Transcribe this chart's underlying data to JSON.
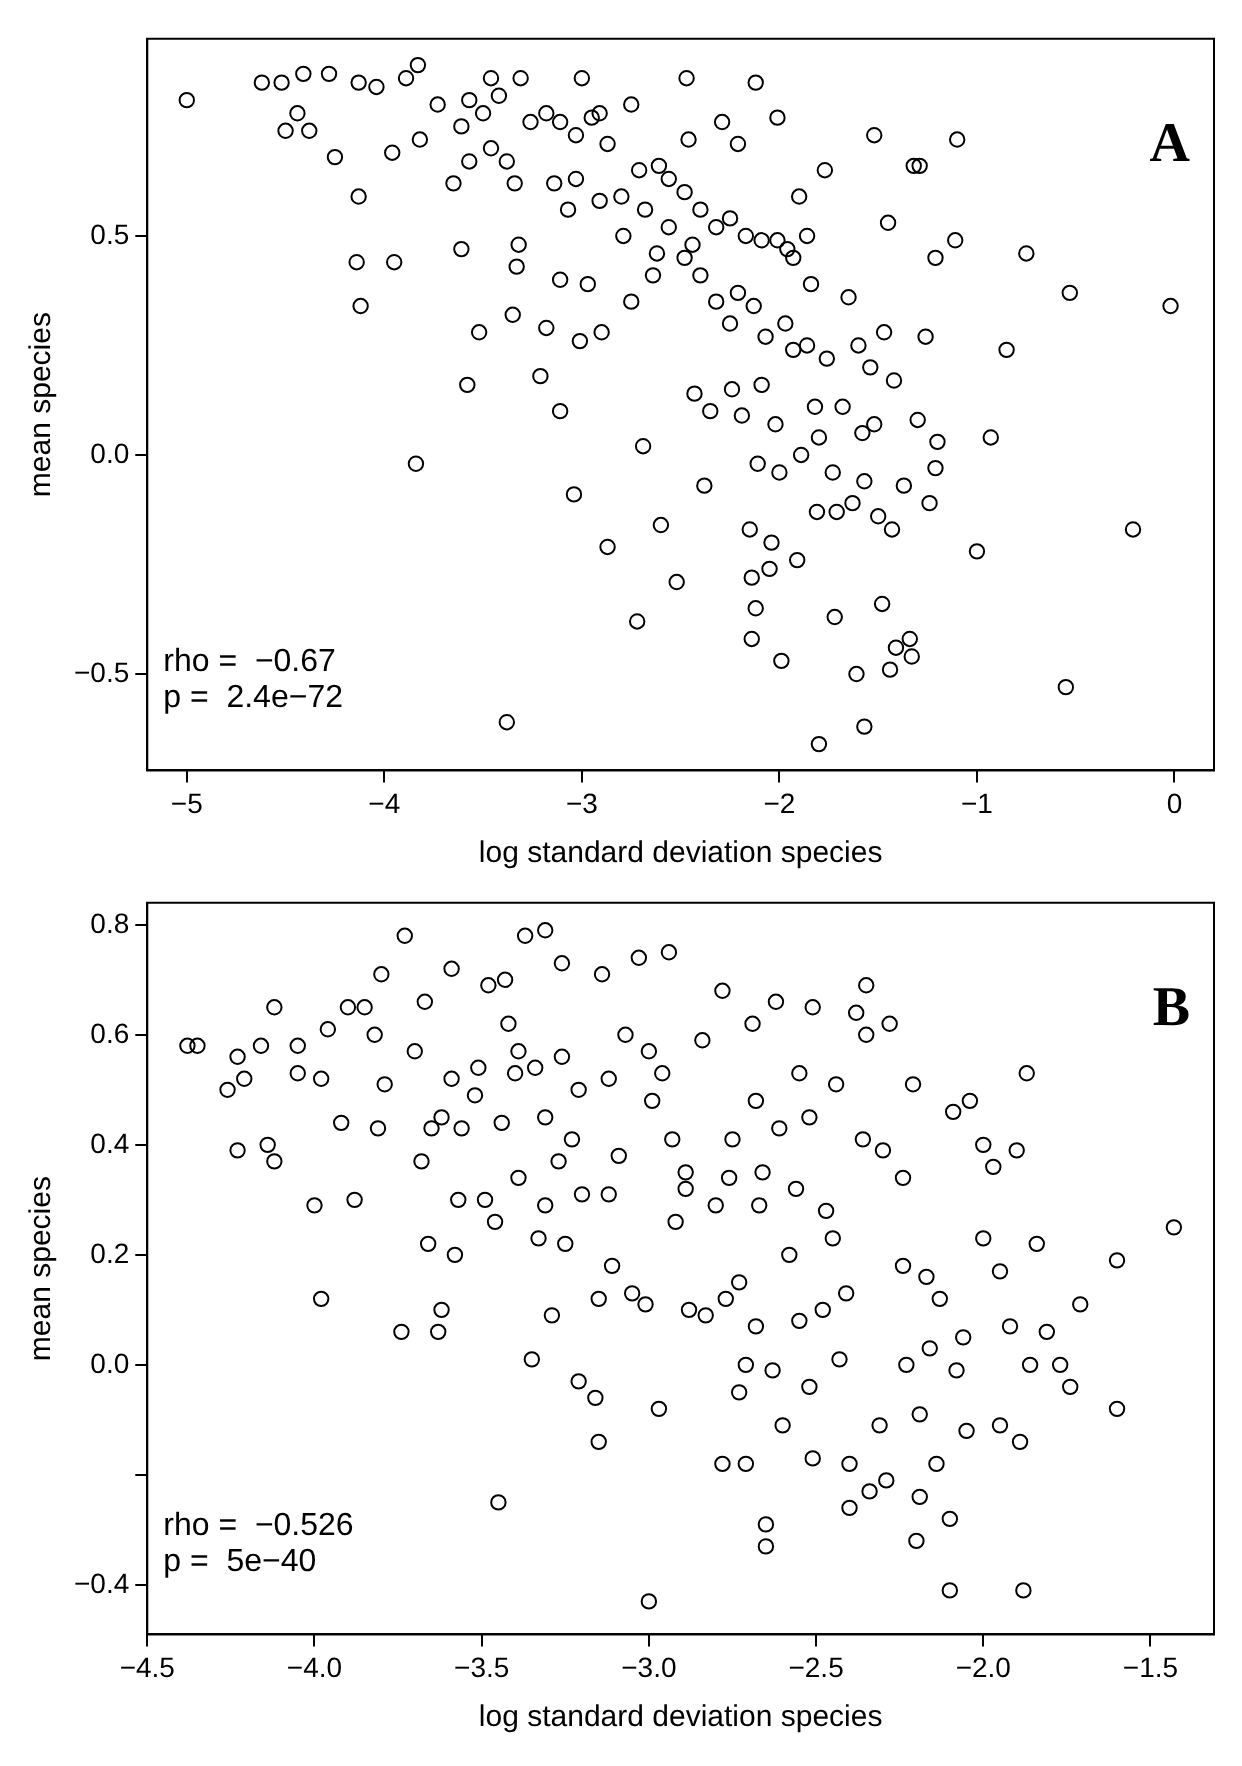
{
  "chart_data": [
    {
      "type": "scatter",
      "title": "A",
      "xlabel": "log standard deviation species",
      "ylabel": "mean species",
      "annotations": [
        "rho =  −0.67",
        "p =  2.4e−72"
      ],
      "color": "#000000",
      "marker": "circle",
      "x": [
        -5.0,
        -4.62,
        -4.52,
        -4.41,
        -4.28,
        -4.5,
        -4.38,
        -4.25,
        -4.44,
        -4.13,
        -4.14,
        -4.12,
        -3.95,
        -3.84,
        -3.83,
        -3.96,
        -4.13,
        -3.82,
        -3.65,
        -3.61,
        -3.58,
        -3.52,
        -3.46,
        -3.31,
        -3.26,
        -3.38,
        -3.32,
        -3.33,
        -3.35,
        -3.21,
        -3.11,
        -3.18,
        -3.11,
        -3.04,
        -3.01,
        -3.0,
        -2.91,
        -2.97,
        -2.9,
        -2.87,
        -2.75,
        -2.8,
        -2.75,
        -2.69,
        -2.72,
        -2.62,
        -2.61,
        -2.6,
        -2.52,
        -2.47,
        -2.46,
        -2.44,
        -2.43,
        -2.38,
        -2.35,
        -2.32,
        -2.29,
        -2.24,
        -2.21,
        -2.19,
        -2.15,
        -2.14,
        -2.14,
        -2.12,
        -2.12,
        -2.11,
        -2.09,
        -2.07,
        -2.05,
        -2.04,
        -2.02,
        -2.01,
        -2.0,
        -1.99,
        -1.96,
        -1.93,
        -1.91,
        -1.89,
        -1.9,
        -1.86,
        -1.84,
        -1.82,
        -1.81,
        -1.8,
        -1.77,
        -1.76,
        -1.73,
        -1.72,
        -1.71,
        -1.68,
        -1.65,
        -1.63,
        -1.61,
        -1.6,
        -1.58,
        -1.57,
        -1.54,
        -1.52,
        -1.52,
        -1.5,
        -1.48,
        -1.47,
        -1.45,
        -1.44,
        -1.43,
        -1.42,
        -1.41,
        -1.37,
        -1.32,
        -1.34,
        -1.33,
        -1.29,
        -1.3,
        -1.26,
        -1.24,
        -1.21,
        -1.21,
        -1.2,
        -1.11,
        -1.1,
        -1.0,
        -0.93,
        -0.85,
        -0.75,
        -0.55,
        -0.53,
        -0.21,
        -0.02,
        -4.04,
        -3.89,
        -3.73,
        -3.57,
        -3.5,
        -3.42,
        -3.18,
        -3.11,
        -3.03,
        -2.95,
        -2.87,
        -2.71,
        -2.56,
        -2.48,
        -2.4,
        -2.32,
        -2.25,
        -2.17,
        -2.09,
        -2.01,
        -1.93,
        -3.61,
        -3.46,
        -3.14,
        -3.03,
        -2.91,
        -2.68,
        -2.56,
        -2.48,
        -2.4,
        -2.21,
        -2.13,
        -1.97,
        -2.64,
        -2.25,
        -3.57,
        -3.34,
        -3.07,
        -2.79,
        -1.86,
        -3.38,
        -1.8,
        -1.57
      ],
      "values": [
        0.81,
        0.85,
        0.85,
        0.87,
        0.87,
        0.74,
        0.74,
        0.68,
        0.78,
        0.59,
        0.44,
        0.34,
        0.44,
        -0.02,
        0.89,
        0.69,
        0.85,
        0.72,
        0.62,
        0.47,
        0.16,
        0.28,
        0.86,
        0.86,
        0.76,
        0.67,
        0.48,
        0.43,
        0.32,
        0.18,
        0.1,
        0.29,
        0.4,
        -0.09,
        0.26,
        0.86,
        0.78,
        0.39,
        0.28,
        -0.21,
        0.8,
        0.59,
        0.35,
        0.02,
        -0.38,
        0.46,
        0.66,
        -0.16,
        -0.29,
        0.86,
        0.72,
        0.48,
        0.14,
        -0.07,
        0.1,
        0.35,
        0.76,
        0.15,
        0.71,
        0.09,
        -0.17,
        -0.28,
        -0.42,
        -0.35,
        0.85,
        -0.02,
        0.16,
        0.27,
        -0.26,
        -0.2,
        0.07,
        0.77,
        -0.04,
        -0.47,
        0.47,
        0.24,
        -0.24,
        0.0,
        0.59,
        0.25,
        0.39,
        0.11,
        -0.13,
        0.04,
        0.65,
        0.22,
        -0.04,
        -0.37,
        -0.13,
        0.11,
        0.36,
        -0.11,
        -0.5,
        0.25,
        0.05,
        -0.06,
        0.2,
        0.07,
        0.73,
        -0.14,
        -0.34,
        0.28,
        0.53,
        -0.49,
        -0.17,
        0.17,
        -0.44,
        -0.07,
        0.66,
        -0.42,
        -0.46,
        0.66,
        0.08,
        0.27,
        -0.11,
        0.45,
        -0.03,
        0.03,
        0.49,
        0.72,
        -0.22,
        0.04,
        0.24,
        0.46,
        -0.53,
        0.37,
        -0.17,
        0.34,
        0.84,
        0.86,
        0.8,
        0.81,
        0.78,
        0.82,
        0.78,
        0.76,
        0.73,
        0.77,
        0.71,
        0.65,
        0.63,
        0.6,
        0.56,
        0.52,
        0.54,
        0.5,
        0.49,
        0.49,
        0.45,
        0.75,
        0.7,
        0.62,
        0.63,
        0.58,
        0.56,
        0.52,
        0.45,
        0.41,
        0.37,
        0.34,
        0.3,
        0.41,
        0.3,
        0.67,
        0.62,
        0.56,
        0.5,
        0.5,
        -0.61,
        -0.66,
        -0.62
      ],
      "xlim": [
        -5.2,
        0.2
      ],
      "xticks": [
        {
          "value": -5,
          "label": "−5"
        },
        {
          "value": -4,
          "label": "−4"
        },
        {
          "value": -3,
          "label": "−3"
        },
        {
          "value": -2,
          "label": "−2"
        },
        {
          "value": -1,
          "label": "−1"
        },
        0
      ],
      "ylim": [
        -0.72,
        0.95
      ],
      "yticks": [
        {
          "value": -0.5,
          "label": "−0.5"
        },
        {
          "value": 0,
          "label": "0.0"
        },
        0.5
      ]
    },
    {
      "type": "scatter",
      "title": "B",
      "xlabel": "log standard deviation species",
      "ylabel": "mean species",
      "annotations": [
        "rho =  −0.526",
        "p =  5e−40"
      ],
      "color": "#000000",
      "marker": "circle",
      "x": [
        -4.38,
        -4.35,
        -4.26,
        -4.23,
        -4.23,
        -4.21,
        -4.16,
        -4.14,
        -4.12,
        -4.12,
        -4.05,
        -4.05,
        -4.0,
        -3.98,
        -3.98,
        -3.96,
        -3.92,
        -3.9,
        -3.88,
        -3.85,
        -3.82,
        -3.81,
        -3.8,
        -3.79,
        -3.74,
        -3.73,
        -3.7,
        -3.68,
        -3.67,
        -3.66,
        -3.65,
        -3.63,
        -3.62,
        -3.62,
        -3.59,
        -3.59,
        -3.58,
        -3.57,
        -3.56,
        -3.52,
        -3.51,
        -3.49,
        -3.48,
        -3.46,
        -3.44,
        -3.43,
        -3.42,
        -3.39,
        -3.39,
        -3.37,
        -3.35,
        -3.34,
        -3.33,
        -3.31,
        -3.31,
        -3.29,
        -3.27,
        -3.25,
        -3.26,
        -3.23,
        -3.21,
        -3.2,
        -3.16,
        -3.15,
        -3.15,
        -3.14,
        -3.12,
        -3.11,
        -3.09,
        -3.05,
        -3.03,
        -3.01,
        -2.99,
        -2.97,
        -2.94,
        -2.92,
        -2.89,
        -2.88,
        -2.83,
        -2.78,
        -2.78,
        -2.77,
        -2.76,
        -2.73,
        -2.73,
        -2.71,
        -2.71,
        -2.69,
        -2.68,
        -2.67,
        -2.65,
        -2.63,
        -2.62,
        -2.61,
        -2.6,
        -2.58,
        -2.55,
        -2.55,
        -2.52,
        -2.51,
        -2.51,
        -2.48,
        -2.45,
        -2.44,
        -2.43,
        -2.41,
        -2.4,
        -2.38,
        -2.35,
        -2.35,
        -2.34,
        -2.31,
        -2.3,
        -2.29,
        -2.28,
        -2.24,
        -2.23,
        -2.21,
        -2.19,
        -2.19,
        -2.17,
        -2.16,
        -2.14,
        -2.13,
        -2.1,
        -2.09,
        -2.08,
        -2.06,
        -2.05,
        -2.04,
        -2.0,
        -2.0,
        -1.97,
        -1.95,
        -1.95,
        -1.92,
        -1.9,
        -1.89,
        -1.87,
        -1.86,
        -1.84,
        -1.81,
        -1.77,
        -1.74,
        -1.71,
        -1.6,
        -1.6,
        -1.43,
        -3.12,
        -3.0,
        -2.93,
        -2.89,
        -2.84,
        -2.75,
        -2.66,
        -2.56,
        -2.47,
        -3.21,
        -3.31,
        -3.07,
        -2.96,
        -2.8,
        -2.36,
        -2.24,
        -3.4,
        -3.26,
        -2.68,
        -2.52,
        -3.0,
        -2.65,
        -2.2,
        -2.1,
        -1.88,
        -2.4,
        -3.45
      ],
      "values": [
        0.58,
        0.58,
        0.5,
        0.56,
        0.39,
        0.52,
        0.58,
        0.4,
        0.65,
        0.37,
        0.53,
        0.58,
        0.29,
        0.52,
        0.12,
        0.61,
        0.44,
        0.65,
        0.3,
        0.65,
        0.6,
        0.43,
        0.71,
        0.51,
        0.06,
        0.78,
        0.57,
        0.37,
        0.66,
        0.22,
        0.43,
        0.06,
        0.1,
        0.45,
        0.52,
        0.72,
        0.2,
        0.3,
        0.43,
        0.49,
        0.54,
        0.3,
        0.69,
        0.26,
        0.44,
        0.7,
        0.62,
        0.34,
        0.57,
        0.78,
        0.01,
        0.54,
        0.23,
        0.79,
        0.29,
        0.09,
        0.37,
        0.22,
        0.73,
        0.41,
        -0.03,
        0.31,
        -0.06,
        -0.14,
        0.12,
        0.71,
        0.52,
        0.18,
        0.38,
        0.13,
        0.74,
        0.11,
        0.48,
        -0.08,
        0.75,
        0.26,
        0.32,
        0.1,
        0.09,
        0.68,
        -0.18,
        0.12,
        0.34,
        0.15,
        -0.05,
        0.0,
        -0.18,
        0.62,
        0.07,
        0.29,
        -0.29,
        -0.01,
        0.66,
        0.43,
        -0.11,
        0.2,
        0.53,
        0.08,
        -0.04,
        0.65,
        -0.17,
        0.1,
        0.23,
        0.51,
        0.01,
        0.13,
        -0.18,
        0.64,
        0.69,
        0.6,
        -0.23,
        -0.11,
        0.39,
        -0.21,
        0.62,
        0.18,
        0.0,
        0.51,
        -0.24,
        -0.09,
        0.16,
        0.03,
        -0.18,
        0.12,
        -0.28,
        0.46,
        -0.01,
        0.05,
        -0.12,
        0.48,
        0.4,
        0.23,
        0.36,
        0.17,
        -0.11,
        0.07,
        0.39,
        -0.14,
        0.53,
        0.0,
        0.22,
        0.06,
        0.0,
        -0.04,
        0.11,
        0.19,
        -0.08,
        0.25,
        0.31,
        0.57,
        0.41,
        0.35,
        0.59,
        0.41,
        0.35,
        0.32,
        0.28,
        0.5,
        0.45,
        0.6,
        0.53,
        0.29,
        0.41,
        0.34,
        0.53,
        0.56,
        0.48,
        0.45,
        -0.43,
        -0.33,
        -0.32,
        -0.41,
        -0.41,
        -0.26,
        -0.25
      ],
      "xlim": [
        -4.5,
        -1.31
      ],
      "xticks": [
        {
          "value": -4.5,
          "label": "−4.5"
        },
        {
          "value": -4,
          "label": "−4.0"
        },
        {
          "value": -3.5,
          "label": "−3.5"
        },
        {
          "value": -3,
          "label": "−3.0"
        },
        {
          "value": -2.5,
          "label": "−2.5"
        },
        {
          "value": -2,
          "label": "−2.0"
        },
        {
          "value": -1.5,
          "label": "−1.5"
        }
      ],
      "ylim": [
        -0.49,
        0.84
      ],
      "yticks": [
        {
          "value": -0.4,
          "label": "−0.4"
        },
        {
          "value": -0.2,
          "label": null
        },
        {
          "value": 0,
          "label": "0.0"
        },
        0.2,
        0.4,
        0.6,
        0.8
      ]
    }
  ]
}
